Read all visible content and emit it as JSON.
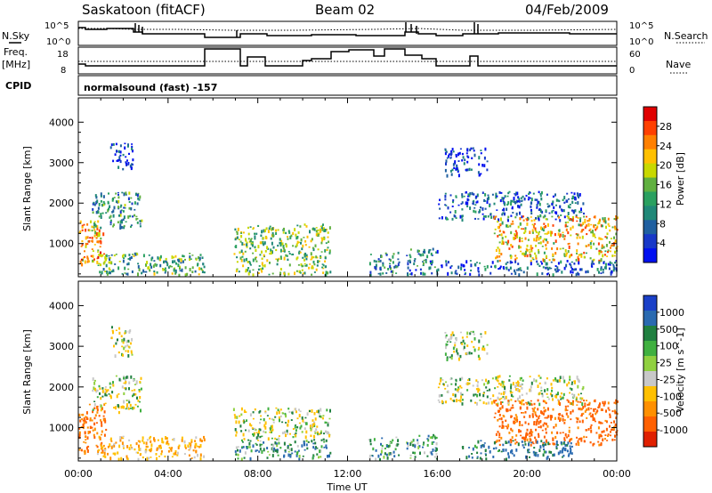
{
  "header": {
    "station": "Saskatoon (fitACF)",
    "beam": "Beam 02",
    "date": "04/Feb/2009",
    "cpid_label": "CPID",
    "cpid_value": "normalsound (fast) -157"
  },
  "top_panels": {
    "nsky_label": "N.Sky",
    "nsky_ticks": [
      "10^5",
      "10^0"
    ],
    "nsearch_label": "N.Search",
    "nsearch_ticks": [
      "10^5",
      "10^0"
    ],
    "freq_label": "Freq.",
    "freq_unit": "[MHz]",
    "freq_ticks": [
      "18",
      "8"
    ],
    "nave_label": "Nave",
    "nave_ticks": [
      "60",
      "0"
    ]
  },
  "chart_data": [
    {
      "type": "heatmap",
      "title": "",
      "quantity": "Power",
      "ylabel": "Slant Range [km]",
      "xlabel": "",
      "xlim_hours": [
        0,
        24
      ],
      "ylim": [
        180,
        4600
      ],
      "x_tick_labels": [
        "00:00",
        "04:00",
        "08:00",
        "12:00",
        "16:00",
        "20:00",
        "00:00"
      ],
      "y_ticks": [
        1000,
        2000,
        3000,
        4000
      ],
      "colorbar": {
        "label": "Power [dB]",
        "tick_labels": [
          "28",
          "24",
          "20",
          "16",
          "12",
          "8",
          "4"
        ],
        "colors": [
          "#e00000",
          "#ff4000",
          "#ff8000",
          "#ffc000",
          "#c8d800",
          "#60b040",
          "#2aa060",
          "#208878",
          "#2060a0",
          "#1838c8",
          "#0010f0"
        ]
      },
      "echo_regions": [
        {
          "t0": 0.0,
          "t1": 1.2,
          "r0": 500,
          "r1": 1600,
          "power": 22
        },
        {
          "t0": 0.6,
          "t1": 2.8,
          "r0": 1400,
          "r1": 2300,
          "power": 12
        },
        {
          "t0": 1.4,
          "t1": 2.4,
          "r0": 2800,
          "r1": 3500,
          "power": 6
        },
        {
          "t0": 0.8,
          "t1": 5.6,
          "r0": 250,
          "r1": 800,
          "power": 14
        },
        {
          "t0": 6.9,
          "t1": 11.2,
          "r0": 250,
          "r1": 1500,
          "power": 16
        },
        {
          "t0": 12.9,
          "t1": 14.3,
          "r0": 250,
          "r1": 800,
          "power": 12
        },
        {
          "t0": 14.6,
          "t1": 16.0,
          "r0": 250,
          "r1": 900,
          "power": 10
        },
        {
          "t0": 16.0,
          "t1": 22.5,
          "r0": 1600,
          "r1": 2300,
          "power": 8
        },
        {
          "t0": 16.3,
          "t1": 18.2,
          "r0": 2700,
          "r1": 3400,
          "power": 6
        },
        {
          "t0": 18.5,
          "t1": 24.0,
          "r0": 600,
          "r1": 1700,
          "power": 20
        },
        {
          "t0": 16.0,
          "t1": 24.0,
          "r0": 250,
          "r1": 600,
          "power": 8
        }
      ]
    },
    {
      "type": "heatmap",
      "title": "",
      "quantity": "Velocity",
      "ylabel": "Slant Range [km]",
      "xlabel": "Time UT",
      "xlim_hours": [
        0,
        24
      ],
      "ylim": [
        180,
        4600
      ],
      "x_tick_labels": [
        "00:00",
        "04:00",
        "08:00",
        "12:00",
        "16:00",
        "20:00",
        "00:00"
      ],
      "y_ticks": [
        1000,
        2000,
        3000,
        4000
      ],
      "colorbar": {
        "label": "Velocity [m s^-1]",
        "tick_labels": [
          "1000",
          "500",
          "100",
          "25",
          "-25",
          "-100",
          "-500",
          "-1000"
        ],
        "colors": [
          "#1a40c8",
          "#2a6ab0",
          "#208040",
          "#40b040",
          "#90d040",
          "#c8c8c8",
          "#ffc000",
          "#ff9000",
          "#ff6000",
          "#e02000"
        ]
      },
      "echo_regions": [
        {
          "t0": 0.0,
          "t1": 1.2,
          "r0": 400,
          "r1": 1600,
          "velocity": -300
        },
        {
          "t0": 0.6,
          "t1": 2.8,
          "r0": 1400,
          "r1": 2300,
          "velocity": 0
        },
        {
          "t0": 1.4,
          "t1": 2.4,
          "r0": 2800,
          "r1": 3500,
          "velocity": 0
        },
        {
          "t0": 0.8,
          "t1": 5.6,
          "r0": 250,
          "r1": 800,
          "velocity": -80
        },
        {
          "t0": 6.9,
          "t1": 11.2,
          "r0": 700,
          "r1": 1500,
          "velocity": 0
        },
        {
          "t0": 6.9,
          "t1": 11.2,
          "r0": 250,
          "r1": 700,
          "velocity": 80
        },
        {
          "t0": 12.9,
          "t1": 14.3,
          "r0": 250,
          "r1": 800,
          "velocity": 60
        },
        {
          "t0": 14.6,
          "t1": 16.0,
          "r0": 250,
          "r1": 900,
          "velocity": 60
        },
        {
          "t0": 16.0,
          "t1": 22.5,
          "r0": 1600,
          "r1": 2300,
          "velocity": 0
        },
        {
          "t0": 16.3,
          "t1": 18.2,
          "r0": 2700,
          "r1": 3400,
          "velocity": 0
        },
        {
          "t0": 18.5,
          "t1": 24.0,
          "r0": 600,
          "r1": 1700,
          "velocity": -350
        },
        {
          "t0": 17.0,
          "t1": 22.0,
          "r0": 250,
          "r1": 700,
          "velocity": 120
        }
      ]
    }
  ],
  "colors": {
    "axis": "#000000",
    "background": "#ffffff",
    "ground_scatter": "#c8c8c8"
  }
}
